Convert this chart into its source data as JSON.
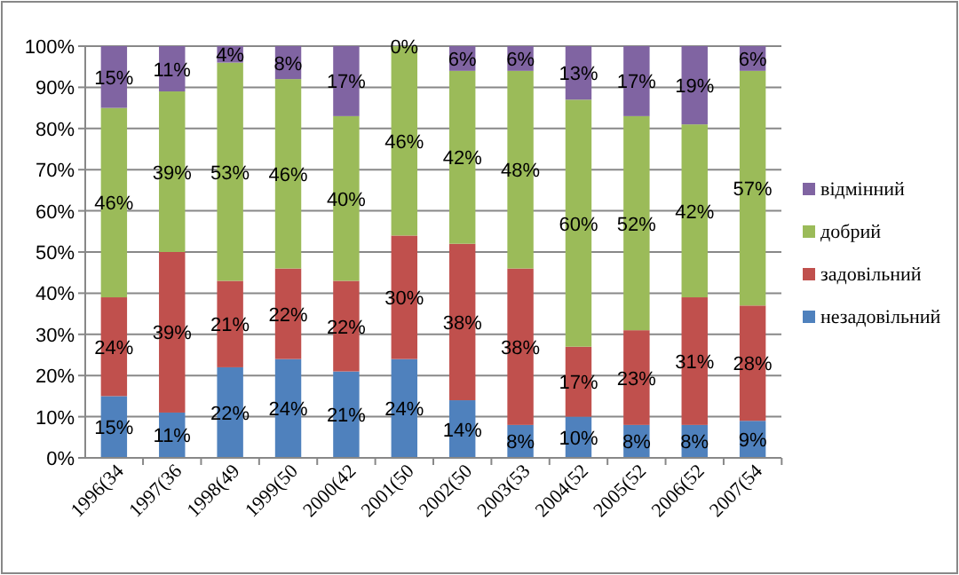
{
  "chart_data": {
    "type": "bar",
    "stacked": true,
    "categories": [
      "1996(34",
      "1997(36",
      "1998(49",
      "1999(50",
      "2000(42",
      "2001(50",
      "2002(50",
      "2003(53",
      "2004(52",
      "2005(52",
      "2006(52",
      "2007(54"
    ],
    "series": [
      {
        "name": "незадовільний",
        "color": "#4f81bd",
        "values": [
          15,
          11,
          22,
          24,
          21,
          24,
          14,
          8,
          10,
          8,
          8,
          9
        ],
        "value_labels": [
          "15%",
          "11%",
          "22%",
          "24%",
          "21%",
          "24%",
          "14%",
          "8%",
          "10%",
          "8%",
          "8%",
          "9%"
        ]
      },
      {
        "name": "задовільний",
        "color": "#c0504d",
        "values": [
          24,
          39,
          21,
          22,
          22,
          30,
          38,
          38,
          17,
          23,
          31,
          28
        ],
        "value_labels": [
          "24%",
          "39%",
          "21%",
          "22%",
          "22%",
          "30%",
          "38%",
          "38%",
          "17%",
          "23%",
          "31%",
          "28%"
        ]
      },
      {
        "name": "добрий",
        "color": "#9bbb59",
        "values": [
          46,
          39,
          53,
          46,
          40,
          46,
          42,
          48,
          60,
          52,
          42,
          57
        ],
        "value_labels": [
          "46%",
          "39%",
          "53%",
          "46%",
          "40%",
          "46%",
          "42%",
          "48%",
          "60%",
          "52%",
          "42%",
          "57%"
        ]
      },
      {
        "name": "відмінний",
        "color": "#8064a2",
        "values": [
          15,
          11,
          4,
          8,
          17,
          0,
          6,
          6,
          13,
          17,
          19,
          6
        ],
        "value_labels": [
          "15%",
          "11%",
          "4%",
          "8%",
          "17%",
          "0%",
          "6%",
          "6%",
          "13%",
          "17%",
          "19%",
          "6%"
        ]
      }
    ],
    "ylim": [
      0,
      100
    ],
    "yticks": [
      {
        "value": 0,
        "label": "0%"
      },
      {
        "value": 10,
        "label": "10%"
      },
      {
        "value": 20,
        "label": "20%"
      },
      {
        "value": 30,
        "label": "30%"
      },
      {
        "value": 40,
        "label": "40%"
      },
      {
        "value": 50,
        "label": "50%"
      },
      {
        "value": 60,
        "label": "60%"
      },
      {
        "value": 70,
        "label": "70%"
      },
      {
        "value": 80,
        "label": "80%"
      },
      {
        "value": 90,
        "label": "90%"
      },
      {
        "value": 100,
        "label": "100%"
      }
    ],
    "grid": "y",
    "legend": "right"
  }
}
